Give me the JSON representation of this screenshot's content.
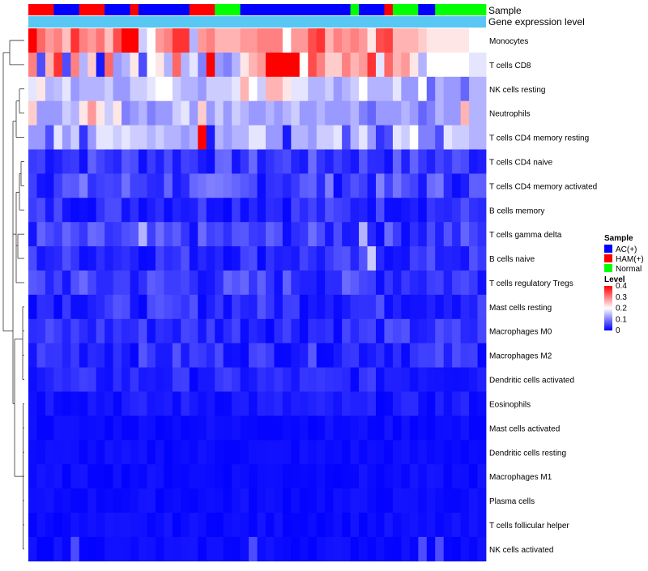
{
  "chart_data": {
    "type": "heatmap",
    "title": "",
    "row_labels": [
      "Monocytes",
      "T cells CD8",
      "NK cells resting",
      "Neutrophils",
      "T cells CD4 memory resting",
      "T cells CD4 naive",
      "T cells CD4 memory activated",
      "B cells memory",
      "T cells gamma delta",
      "B cells naive",
      "T cells regulatory  Tregs",
      "Mast cells resting",
      "Macrophages M0",
      "Macrophages M2",
      "Dendritic cells activated",
      "Eosinophils",
      "Mast cells activated",
      "Dendritic cells resting",
      "Macrophages M1",
      "Plasma cells",
      "T cells follicular helper",
      "NK cells activated"
    ],
    "annotation_labels": [
      "Sample",
      "Gene expression level"
    ],
    "sample_groups": [
      "HAM(+)",
      "HAM(+)",
      "HAM(+)",
      "AC(+)",
      "AC(+)",
      "AC(+)",
      "HAM(+)",
      "HAM(+)",
      "HAM(+)",
      "AC(+)",
      "AC(+)",
      "AC(+)",
      "HAM(+)",
      "AC(+)",
      "AC(+)",
      "AC(+)",
      "AC(+)",
      "AC(+)",
      "AC(+)",
      "HAM(+)",
      "HAM(+)",
      "HAM(+)",
      "Normal",
      "Normal",
      "Normal",
      "AC(+)",
      "AC(+)",
      "AC(+)",
      "AC(+)",
      "AC(+)",
      "AC(+)",
      "AC(+)",
      "AC(+)",
      "AC(+)",
      "AC(+)",
      "AC(+)",
      "AC(+)",
      "AC(+)",
      "Normal",
      "AC(+)",
      "AC(+)",
      "AC(+)",
      "HAM(+)",
      "Normal",
      "Normal",
      "Normal",
      "AC(+)",
      "AC(+)",
      "Normal",
      "Normal",
      "Normal",
      "Normal",
      "Normal",
      "Normal"
    ],
    "values": [
      [
        0.4,
        0.32,
        0.28,
        0.3,
        0.25,
        0.36,
        0.3,
        0.28,
        0.31,
        0.25,
        0.34,
        0.44,
        0.44,
        0.16,
        0.2,
        0.28,
        0.3,
        0.36,
        0.36,
        0.14,
        0.28,
        0.3,
        0.26,
        0.26,
        0.26,
        0.28,
        0.28,
        0.3,
        0.3,
        0.3,
        0.2,
        0.28,
        0.28,
        0.34,
        0.36,
        0.26,
        0.3,
        0.28,
        0.3,
        0.28,
        0.22,
        0.34,
        0.35,
        0.26,
        0.26,
        0.26,
        0.24,
        0.22,
        0.22,
        0.22,
        0.22,
        0.22,
        0.2,
        0.2
      ],
      [
        0.3,
        0.06,
        0.26,
        0.36,
        0.06,
        0.3,
        0.14,
        0.24,
        0.02,
        0.32,
        0.12,
        0.14,
        0.22,
        0.06,
        0.2,
        0.22,
        0.14,
        0.32,
        0.14,
        0.18,
        0.1,
        0.46,
        0.12,
        0.1,
        0.14,
        0.22,
        0.26,
        0.28,
        0.44,
        0.44,
        0.44,
        0.4,
        0.2,
        0.34,
        0.3,
        0.24,
        0.24,
        0.3,
        0.26,
        0.28,
        0.36,
        0.18,
        0.32,
        0.26,
        0.28,
        0.22,
        0.14,
        0.2,
        0.2,
        0.2,
        0.2,
        0.2,
        0.18,
        0.18
      ],
      [
        0.18,
        0.22,
        0.14,
        0.15,
        0.18,
        0.12,
        0.14,
        0.14,
        0.14,
        0.16,
        0.12,
        0.12,
        0.16,
        0.16,
        0.18,
        0.2,
        0.2,
        0.16,
        0.14,
        0.14,
        0.12,
        0.16,
        0.16,
        0.16,
        0.18,
        0.26,
        0.2,
        0.16,
        0.26,
        0.26,
        0.22,
        0.18,
        0.18,
        0.14,
        0.14,
        0.16,
        0.12,
        0.14,
        0.16,
        0.2,
        0.14,
        0.14,
        0.14,
        0.18,
        0.12,
        0.12,
        0.2,
        0.08,
        0.14,
        0.12,
        0.12,
        0.08,
        0.14,
        0.14
      ],
      [
        0.24,
        0.12,
        0.12,
        0.12,
        0.16,
        0.14,
        0.22,
        0.28,
        0.22,
        0.16,
        0.22,
        0.1,
        0.12,
        0.14,
        0.1,
        0.12,
        0.12,
        0.16,
        0.18,
        0.12,
        0.24,
        0.12,
        0.16,
        0.12,
        0.16,
        0.14,
        0.12,
        0.12,
        0.14,
        0.12,
        0.14,
        0.16,
        0.12,
        0.12,
        0.14,
        0.12,
        0.12,
        0.12,
        0.14,
        0.1,
        0.08,
        0.12,
        0.12,
        0.12,
        0.14,
        0.12,
        0.08,
        0.1,
        0.14,
        0.12,
        0.12,
        0.26,
        0.14,
        0.14
      ],
      [
        0.12,
        0.12,
        0.06,
        0.18,
        0.12,
        0.16,
        0.04,
        0.12,
        0.18,
        0.18,
        0.16,
        0.18,
        0.16,
        0.16,
        0.14,
        0.16,
        0.14,
        0.14,
        0.12,
        0.14,
        0.4,
        0.02,
        0.14,
        0.12,
        0.14,
        0.14,
        0.18,
        0.18,
        0.12,
        0.12,
        0.02,
        0.14,
        0.14,
        0.12,
        0.16,
        0.16,
        0.18,
        0.06,
        0.14,
        0.18,
        0.12,
        0.04,
        0.06,
        0.18,
        0.16,
        0.2,
        0.1,
        0.1,
        0.06,
        0.18,
        0.16,
        0.16,
        0.14,
        0.14
      ]
    ],
    "uniform_values_lower_rows": "rows 6-22 are mostly near 0 to 0.1 (blue), with sparse slightly lighter cells",
    "color_scale": {
      "title": "Level",
      "ticks": [
        "0.4",
        "0.3",
        "0.2",
        "0.1",
        "0"
      ],
      "low_color": "#0000ff",
      "mid_color": "#ffffff",
      "high_color": "#ff0000",
      "range": [
        0,
        0.4
      ]
    },
    "sample_legend": {
      "title": "Sample",
      "entries": [
        {
          "label": "AC(+)",
          "color": "#0000ff"
        },
        {
          "label": "HAM(+)",
          "color": "#ff0000"
        },
        {
          "label": "Normal",
          "color": "#00ff00"
        }
      ]
    },
    "gene_expression_color": "#58c7f3"
  }
}
